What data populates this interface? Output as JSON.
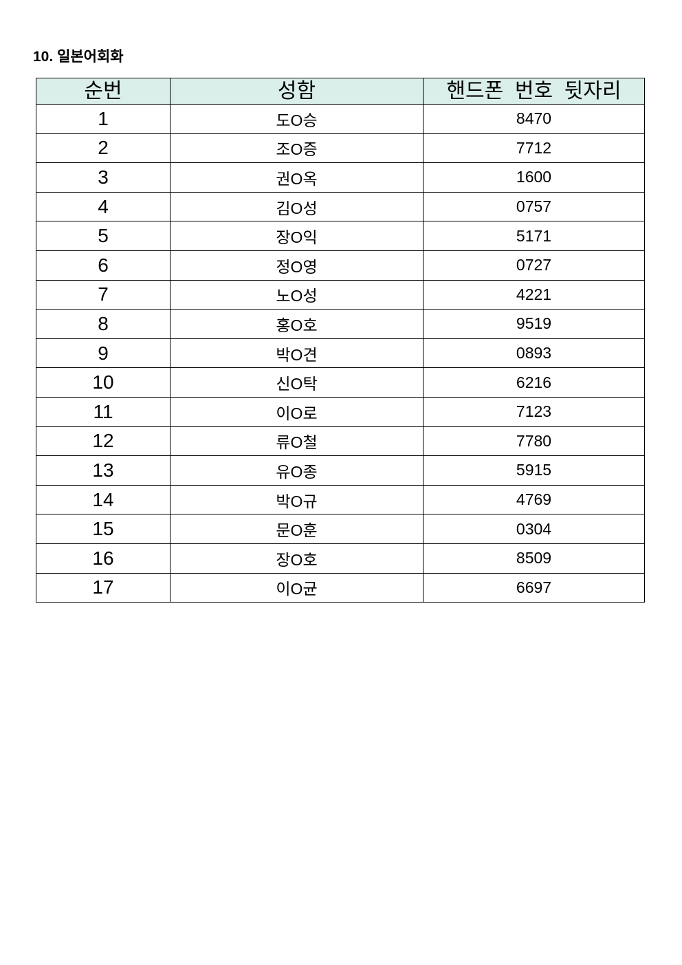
{
  "title": "10.  일본어회화",
  "table": {
    "headers": [
      "순번",
      "성함",
      "핸드폰  번호  뒷자리"
    ],
    "header_bg": "#daeeea",
    "rows": [
      [
        "1",
        "도O승",
        "8470"
      ],
      [
        "2",
        "조O증",
        "7712"
      ],
      [
        "3",
        "권O옥",
        "1600"
      ],
      [
        "4",
        "김O성",
        "0757"
      ],
      [
        "5",
        "장O익",
        "5171"
      ],
      [
        "6",
        "정O영",
        "0727"
      ],
      [
        "7",
        "노O성",
        "4221"
      ],
      [
        "8",
        "홍O호",
        "9519"
      ],
      [
        "9",
        "박O견",
        "0893"
      ],
      [
        "10",
        "신O탁",
        "6216"
      ],
      [
        "11",
        "이O로",
        "7123"
      ],
      [
        "12",
        "류O철",
        "7780"
      ],
      [
        "13",
        "유O종",
        "5915"
      ],
      [
        "14",
        "박O규",
        "4769"
      ],
      [
        "15",
        "문O훈",
        "0304"
      ],
      [
        "16",
        "장O호",
        "8509"
      ],
      [
        "17",
        "이O균",
        "6697"
      ]
    ]
  }
}
